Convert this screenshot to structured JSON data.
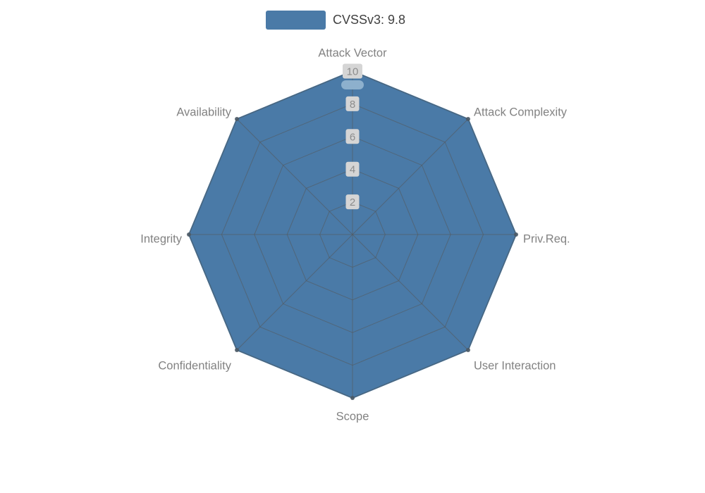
{
  "legend": {
    "label": "CVSSv3: 9.8"
  },
  "chart_data": {
    "type": "radar",
    "title": "",
    "categories": [
      "Attack Vector",
      "Attack Complexity",
      "Priv.Req.",
      "User Interaction",
      "Scope",
      "Confidentiality",
      "Integrity",
      "Availability"
    ],
    "series": [
      {
        "name": "CVSSv3: 9.8",
        "values": [
          10,
          10,
          10,
          10,
          10,
          10,
          10,
          10
        ]
      }
    ],
    "radial_ticks": [
      2,
      4,
      6,
      8,
      10
    ],
    "range": [
      0,
      10
    ],
    "grid": true,
    "legend_position": "top-center",
    "colors": {
      "fill": "#4a7aa7",
      "fill_stroke": "#44739d",
      "grid_line": "#555555",
      "axis_label": "#828282",
      "tick_text": "#8c8c8c",
      "tick_bg": "#d5d5d5",
      "vertex_dot": "#4d5a66",
      "top_marker": "#8db0cd",
      "legend_text": "#404040",
      "background": "#ffffff"
    }
  }
}
